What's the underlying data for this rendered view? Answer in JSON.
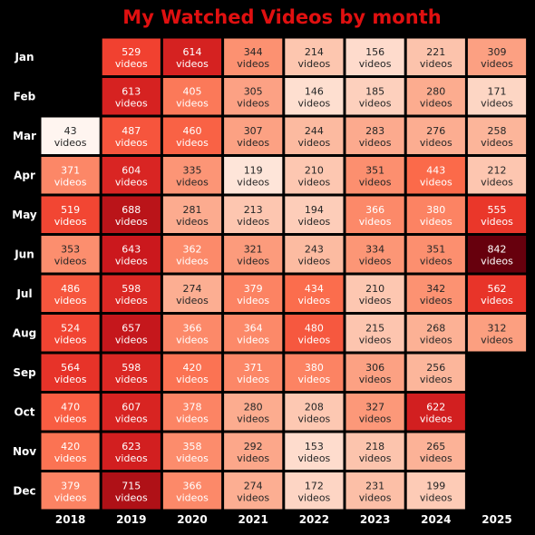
{
  "chart_data": {
    "type": "heatmap",
    "title": "My Watched Videos by month",
    "colormap": "Reds",
    "background": "#000000",
    "title_color": "#e01010",
    "unit_label": "videos",
    "years": [
      "2018",
      "2019",
      "2020",
      "2021",
      "2022",
      "2023",
      "2024",
      "2025"
    ],
    "months": [
      "Jan",
      "Feb",
      "Mar",
      "Apr",
      "May",
      "Jun",
      "Jul",
      "Aug",
      "Sep",
      "Oct",
      "Nov",
      "Dec"
    ],
    "values": [
      [
        null,
        529,
        614,
        344,
        214,
        156,
        221,
        309
      ],
      [
        null,
        613,
        405,
        305,
        146,
        185,
        280,
        171
      ],
      [
        43,
        487,
        460,
        307,
        244,
        283,
        276,
        258
      ],
      [
        371,
        604,
        335,
        119,
        210,
        351,
        443,
        212
      ],
      [
        519,
        688,
        281,
        213,
        194,
        366,
        380,
        555
      ],
      [
        353,
        643,
        362,
        321,
        243,
        334,
        351,
        842
      ],
      [
        486,
        598,
        274,
        379,
        434,
        210,
        342,
        562
      ],
      [
        524,
        657,
        366,
        364,
        480,
        215,
        268,
        312
      ],
      [
        564,
        598,
        420,
        371,
        380,
        306,
        256,
        null
      ],
      [
        470,
        607,
        378,
        280,
        208,
        327,
        622,
        null
      ],
      [
        420,
        623,
        358,
        292,
        153,
        218,
        265,
        null
      ],
      [
        379,
        715,
        366,
        274,
        172,
        231,
        199,
        null
      ]
    ],
    "value_range": [
      43,
      842
    ]
  }
}
